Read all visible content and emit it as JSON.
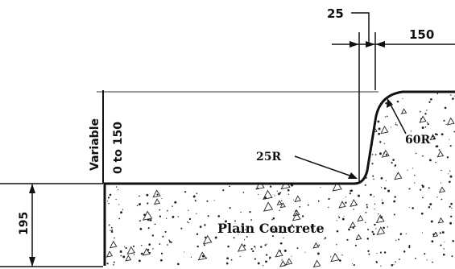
{
  "dimensions": {
    "top_small": "25",
    "top_right": "150",
    "variable_label": "Variable",
    "variable_range": "0 to 150",
    "left_height": "195"
  },
  "callouts": {
    "small_radius": "25R",
    "large_radius": "60R"
  },
  "material": {
    "label": "Plain Concrete"
  },
  "colors": {
    "line": "#111111",
    "speckle": "#222222",
    "top_reference_line": "#9a9a9a",
    "background": "#ffffff"
  }
}
